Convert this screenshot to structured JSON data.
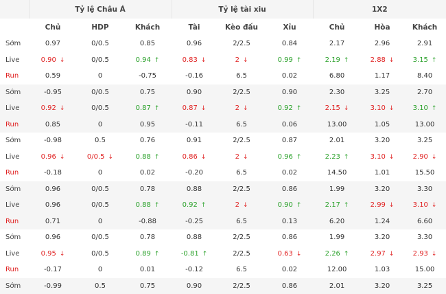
{
  "groups": [
    "Tỷ lệ Châu Á",
    "Tỷ lệ tài xiu",
    "1X2"
  ],
  "columns": [
    "Chủ",
    "HDP",
    "Khách",
    "Tài",
    "Kèo đấu",
    "Xỉu",
    "Chủ",
    "Hòa",
    "Khách"
  ],
  "arrows": {
    "up": "↑",
    "down": "↓"
  },
  "colors": {
    "up": "#2aa12a",
    "down": "#e02020",
    "run_label": "#e02020",
    "shade": "#f5f5f5"
  },
  "rows": [
    {
      "label": "Sớm",
      "type": "som",
      "shade": false,
      "cells": [
        {
          "v": "0.97"
        },
        {
          "v": "0/0.5"
        },
        {
          "v": "0.85"
        },
        {
          "v": "0.96"
        },
        {
          "v": "2/2.5"
        },
        {
          "v": "0.84"
        },
        {
          "v": "2.17"
        },
        {
          "v": "2.96"
        },
        {
          "v": "2.91"
        }
      ]
    },
    {
      "label": "Live",
      "type": "live",
      "shade": false,
      "cells": [
        {
          "v": "0.90",
          "d": "down"
        },
        {
          "v": "0/0.5"
        },
        {
          "v": "0.94",
          "d": "up"
        },
        {
          "v": "0.83",
          "d": "down"
        },
        {
          "v": "2",
          "d": "down"
        },
        {
          "v": "0.99",
          "d": "up"
        },
        {
          "v": "2.19",
          "d": "up"
        },
        {
          "v": "2.88",
          "d": "down"
        },
        {
          "v": "3.15",
          "d": "up"
        }
      ]
    },
    {
      "label": "Run",
      "type": "run",
      "shade": false,
      "cells": [
        {
          "v": "0.59"
        },
        {
          "v": "0"
        },
        {
          "v": "-0.75"
        },
        {
          "v": "-0.16"
        },
        {
          "v": "6.5"
        },
        {
          "v": "0.02"
        },
        {
          "v": "6.80"
        },
        {
          "v": "1.17"
        },
        {
          "v": "8.40"
        }
      ]
    },
    {
      "label": "Sớm",
      "type": "som",
      "shade": true,
      "cells": [
        {
          "v": "-0.95"
        },
        {
          "v": "0/0.5"
        },
        {
          "v": "0.75"
        },
        {
          "v": "0.90"
        },
        {
          "v": "2/2.5"
        },
        {
          "v": "0.90"
        },
        {
          "v": "2.30"
        },
        {
          "v": "3.25"
        },
        {
          "v": "2.70"
        }
      ]
    },
    {
      "label": "Live",
      "type": "live",
      "shade": true,
      "cells": [
        {
          "v": "0.92",
          "d": "down"
        },
        {
          "v": "0/0.5"
        },
        {
          "v": "0.87",
          "d": "up"
        },
        {
          "v": "0.87",
          "d": "down"
        },
        {
          "v": "2",
          "d": "down"
        },
        {
          "v": "0.92",
          "d": "up"
        },
        {
          "v": "2.15",
          "d": "down"
        },
        {
          "v": "3.10",
          "d": "down"
        },
        {
          "v": "3.10",
          "d": "up"
        }
      ]
    },
    {
      "label": "Run",
      "type": "run",
      "shade": true,
      "cells": [
        {
          "v": "0.85"
        },
        {
          "v": "0"
        },
        {
          "v": "0.95"
        },
        {
          "v": "-0.11"
        },
        {
          "v": "6.5"
        },
        {
          "v": "0.06"
        },
        {
          "v": "13.00"
        },
        {
          "v": "1.05"
        },
        {
          "v": "13.00"
        }
      ]
    },
    {
      "label": "Sớm",
      "type": "som",
      "shade": false,
      "cells": [
        {
          "v": "-0.98"
        },
        {
          "v": "0.5"
        },
        {
          "v": "0.76"
        },
        {
          "v": "0.91"
        },
        {
          "v": "2/2.5"
        },
        {
          "v": "0.87"
        },
        {
          "v": "2.01"
        },
        {
          "v": "3.20"
        },
        {
          "v": "3.25"
        }
      ]
    },
    {
      "label": "Live",
      "type": "live",
      "shade": false,
      "cells": [
        {
          "v": "0.96",
          "d": "down"
        },
        {
          "v": "0/0.5",
          "d": "down"
        },
        {
          "v": "0.88",
          "d": "up"
        },
        {
          "v": "0.86",
          "d": "down"
        },
        {
          "v": "2",
          "d": "down"
        },
        {
          "v": "0.96",
          "d": "up"
        },
        {
          "v": "2.23",
          "d": "up"
        },
        {
          "v": "3.10",
          "d": "down"
        },
        {
          "v": "2.90",
          "d": "down"
        }
      ]
    },
    {
      "label": "Run",
      "type": "run",
      "shade": false,
      "cells": [
        {
          "v": "-0.18"
        },
        {
          "v": "0"
        },
        {
          "v": "0.02"
        },
        {
          "v": "-0.20"
        },
        {
          "v": "6.5"
        },
        {
          "v": "0.02"
        },
        {
          "v": "14.50"
        },
        {
          "v": "1.01"
        },
        {
          "v": "15.50"
        }
      ]
    },
    {
      "label": "Sớm",
      "type": "som",
      "shade": true,
      "cells": [
        {
          "v": "0.96"
        },
        {
          "v": "0/0.5"
        },
        {
          "v": "0.78"
        },
        {
          "v": "0.88"
        },
        {
          "v": "2/2.5"
        },
        {
          "v": "0.86"
        },
        {
          "v": "1.99"
        },
        {
          "v": "3.20"
        },
        {
          "v": "3.30"
        }
      ]
    },
    {
      "label": "Live",
      "type": "live",
      "shade": true,
      "cells": [
        {
          "v": "0.96"
        },
        {
          "v": "0/0.5"
        },
        {
          "v": "0.88",
          "d": "up"
        },
        {
          "v": "0.92",
          "d": "up"
        },
        {
          "v": "2",
          "d": "down"
        },
        {
          "v": "0.90",
          "d": "up"
        },
        {
          "v": "2.17",
          "d": "up"
        },
        {
          "v": "2.99",
          "d": "down"
        },
        {
          "v": "3.10",
          "d": "down"
        }
      ]
    },
    {
      "label": "Run",
      "type": "run",
      "shade": true,
      "cells": [
        {
          "v": "0.71"
        },
        {
          "v": "0"
        },
        {
          "v": "-0.88"
        },
        {
          "v": "-0.25"
        },
        {
          "v": "6.5"
        },
        {
          "v": "0.13"
        },
        {
          "v": "6.20"
        },
        {
          "v": "1.24"
        },
        {
          "v": "6.60"
        }
      ]
    },
    {
      "label": "Sớm",
      "type": "som",
      "shade": false,
      "cells": [
        {
          "v": "0.96"
        },
        {
          "v": "0/0.5"
        },
        {
          "v": "0.78"
        },
        {
          "v": "0.88"
        },
        {
          "v": "2/2.5"
        },
        {
          "v": "0.86"
        },
        {
          "v": "1.99"
        },
        {
          "v": "3.20"
        },
        {
          "v": "3.30"
        }
      ]
    },
    {
      "label": "Live",
      "type": "live",
      "shade": false,
      "cells": [
        {
          "v": "0.95",
          "d": "down"
        },
        {
          "v": "0/0.5"
        },
        {
          "v": "0.89",
          "d": "up"
        },
        {
          "v": "-0.81",
          "d": "up"
        },
        {
          "v": "2/2.5"
        },
        {
          "v": "0.63",
          "d": "down"
        },
        {
          "v": "2.26",
          "d": "up"
        },
        {
          "v": "2.97",
          "d": "down"
        },
        {
          "v": "2.93",
          "d": "down"
        }
      ]
    },
    {
      "label": "Run",
      "type": "run",
      "shade": false,
      "cells": [
        {
          "v": "-0.17"
        },
        {
          "v": "0"
        },
        {
          "v": "0.01"
        },
        {
          "v": "-0.12"
        },
        {
          "v": "6.5"
        },
        {
          "v": "0.02"
        },
        {
          "v": "12.00"
        },
        {
          "v": "1.03"
        },
        {
          "v": "15.00"
        }
      ]
    },
    {
      "label": "Sớm",
      "type": "som",
      "shade": true,
      "cells": [
        {
          "v": "-0.99"
        },
        {
          "v": "0.5"
        },
        {
          "v": "0.75"
        },
        {
          "v": "0.90"
        },
        {
          "v": "2/2.5"
        },
        {
          "v": "0.86"
        },
        {
          "v": "2.01"
        },
        {
          "v": "3.20"
        },
        {
          "v": "3.25"
        }
      ]
    }
  ]
}
